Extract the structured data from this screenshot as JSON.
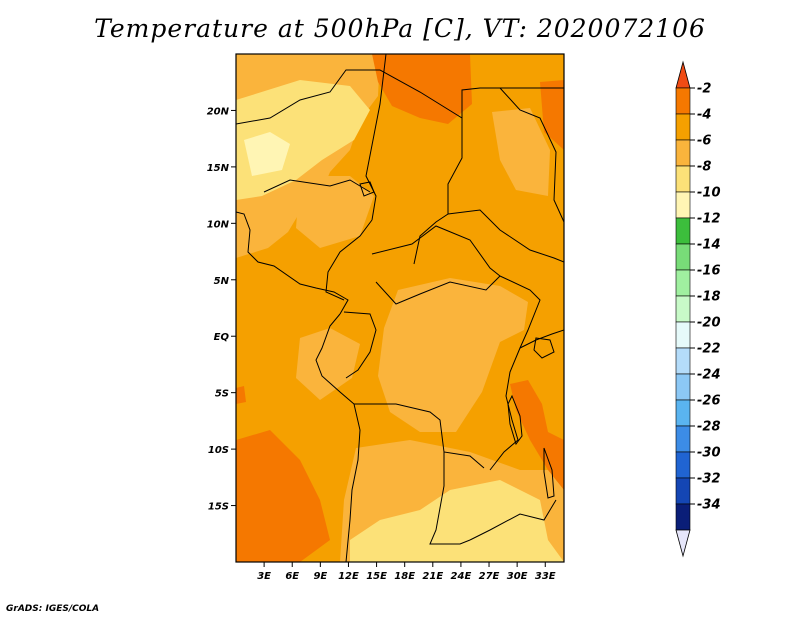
{
  "title": "Temperature at 500hPa [C], VT: 2020072106",
  "credit": "GrADS: IGES/COLA",
  "map": {
    "lon_range": [
      0,
      35
    ],
    "lat_range": [
      -20,
      25
    ],
    "lon_ticks": [
      {
        "value": 3,
        "label": "3E"
      },
      {
        "value": 6,
        "label": "6E"
      },
      {
        "value": 9,
        "label": "9E"
      },
      {
        "value": 12,
        "label": "12E"
      },
      {
        "value": 15,
        "label": "15E"
      },
      {
        "value": 18,
        "label": "18E"
      },
      {
        "value": 21,
        "label": "21E"
      },
      {
        "value": 24,
        "label": "24E"
      },
      {
        "value": 27,
        "label": "27E"
      },
      {
        "value": 30,
        "label": "30E"
      },
      {
        "value": 33,
        "label": "33E"
      }
    ],
    "lat_ticks": [
      {
        "value": 20,
        "label": "20N"
      },
      {
        "value": 15,
        "label": "15N"
      },
      {
        "value": 10,
        "label": "10N"
      },
      {
        "value": 5,
        "label": "5N"
      },
      {
        "value": 0,
        "label": "EQ"
      },
      {
        "value": -5,
        "label": "5S"
      },
      {
        "value": -10,
        "label": "10S"
      },
      {
        "value": -15,
        "label": "15S"
      }
    ]
  },
  "colorbar": {
    "levels": [
      "-2",
      "-4",
      "-6",
      "-8",
      "-10",
      "-12",
      "-14",
      "-16",
      "-18",
      "-20",
      "-22",
      "-24",
      "-26",
      "-28",
      "-30",
      "-32",
      "-34"
    ],
    "colors": [
      "#f04b14",
      "#f57800",
      "#f5a000",
      "#fab43c",
      "#fce178",
      "#fff5b4",
      "#3cbe3c",
      "#78dc78",
      "#a0f0a0",
      "#c8fac8",
      "#e6fafa",
      "#b4dcfa",
      "#8cc8f5",
      "#5ab4f0",
      "#3c8ce6",
      "#2064d2",
      "#1446b4",
      "#0a1e78",
      "#e6e6fa"
    ]
  }
}
